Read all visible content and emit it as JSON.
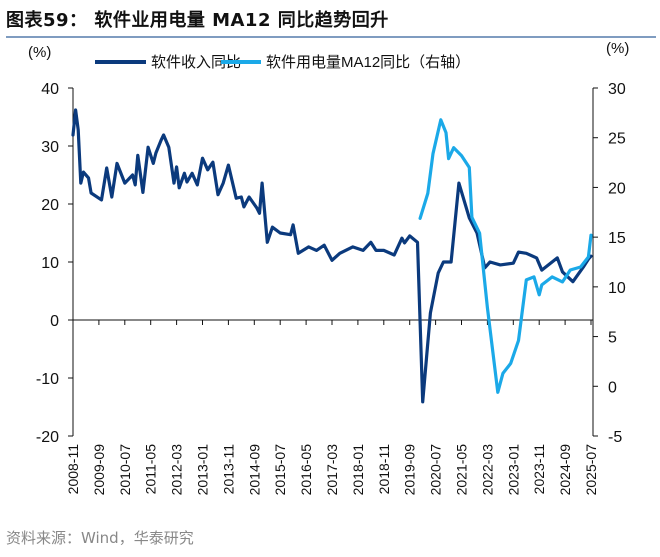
{
  "title": "图表59： 软件业用电量 MA12 同比趋势回升",
  "source": "资料来源：Wind，华泰研究",
  "chart_data": {
    "type": "line",
    "title": "软件业用电量 MA12 同比趋势回升",
    "left_axis": {
      "label": "(%)",
      "ylim": [
        -20,
        40
      ],
      "ticks": [
        -20,
        -10,
        0,
        10,
        20,
        30,
        40
      ]
    },
    "right_axis": {
      "label": "(%)",
      "ylim": [
        -5,
        30
      ],
      "ticks": [
        -5,
        0,
        5,
        10,
        15,
        20,
        25,
        30
      ]
    },
    "x_tick_labels": [
      "2008-11",
      "2009-09",
      "2010-07",
      "2011-05",
      "2012-03",
      "2013-01",
      "2013-11",
      "2014-09",
      "2015-07",
      "2016-05",
      "2017-03",
      "2018-01",
      "2018-11",
      "2019-09",
      "2020-07",
      "2021-05",
      "2022-03",
      "2023-01",
      "2023-11",
      "2024-09",
      "2025-07"
    ],
    "xlim": [
      "2008-11",
      "2025-07"
    ],
    "grid": false,
    "legend_position": "top",
    "series": [
      {
        "name": "软件收入同比",
        "axis": "left",
        "color": "#0b3a7d",
        "points": [
          [
            "2008-11",
            31.9
          ],
          [
            "2008-12",
            36.2
          ],
          [
            "2009-01",
            32.8
          ],
          [
            "2009-02",
            23.6
          ],
          [
            "2009-03",
            25.5
          ],
          [
            "2009-05",
            24.5
          ],
          [
            "2009-06",
            21.9
          ],
          [
            "2009-10",
            20.7
          ],
          [
            "2009-12",
            26.2
          ],
          [
            "2010-02",
            21.2
          ],
          [
            "2010-04",
            27
          ],
          [
            "2010-07",
            23.6
          ],
          [
            "2010-10",
            25
          ],
          [
            "2010-11",
            23.3
          ],
          [
            "2010-12",
            28.4
          ],
          [
            "2011-02",
            22
          ],
          [
            "2011-04",
            29.8
          ],
          [
            "2011-06",
            27
          ],
          [
            "2011-07",
            28.8
          ],
          [
            "2011-09",
            31
          ],
          [
            "2011-10",
            31.9
          ],
          [
            "2011-12",
            29.8
          ],
          [
            "2012-02",
            23.6
          ],
          [
            "2012-03",
            26.4
          ],
          [
            "2012-04",
            22.8
          ],
          [
            "2012-06",
            25.3
          ],
          [
            "2012-07",
            23.8
          ],
          [
            "2012-09",
            25.3
          ],
          [
            "2012-11",
            23.3
          ],
          [
            "2013-01",
            27.9
          ],
          [
            "2013-03",
            25.9
          ],
          [
            "2013-05",
            27.2
          ],
          [
            "2013-07",
            21.6
          ],
          [
            "2013-09",
            23.6
          ],
          [
            "2013-11",
            26.7
          ],
          [
            "2014-02",
            21
          ],
          [
            "2014-04",
            21.2
          ],
          [
            "2014-05",
            19.5
          ],
          [
            "2014-07",
            21.2
          ],
          [
            "2014-10",
            19.3
          ],
          [
            "2014-11",
            18.4
          ],
          [
            "2014-12",
            23.6
          ],
          [
            "2015-02",
            13.4
          ],
          [
            "2015-04",
            16
          ],
          [
            "2015-07",
            15
          ],
          [
            "2015-11",
            14.7
          ],
          [
            "2015-12",
            16.4
          ],
          [
            "2016-02",
            11.5
          ],
          [
            "2016-06",
            12.6
          ],
          [
            "2016-09",
            12
          ],
          [
            "2016-12",
            12.9
          ],
          [
            "2017-03",
            10.3
          ],
          [
            "2017-06",
            11.5
          ],
          [
            "2017-11",
            12.6
          ],
          [
            "2018-03",
            12
          ],
          [
            "2018-06",
            13.4
          ],
          [
            "2018-08",
            12
          ],
          [
            "2018-11",
            12
          ],
          [
            "2019-03",
            11.2
          ],
          [
            "2019-06",
            14.1
          ],
          [
            "2019-07",
            13.3
          ],
          [
            "2019-09",
            14.5
          ],
          [
            "2019-12",
            13.4
          ],
          [
            "2020-02",
            -14.1
          ],
          [
            "2020-05",
            1.2
          ],
          [
            "2020-08",
            8.1
          ],
          [
            "2020-10",
            10
          ],
          [
            "2021-01",
            10
          ],
          [
            "2021-04",
            23.6
          ],
          [
            "2021-08",
            17.6
          ],
          [
            "2021-11",
            15
          ],
          [
            "2022-02",
            9
          ],
          [
            "2022-04",
            10
          ],
          [
            "2022-08",
            9.5
          ],
          [
            "2023-01",
            9.8
          ],
          [
            "2023-03",
            11.7
          ],
          [
            "2023-06",
            11.5
          ],
          [
            "2023-10",
            10.7
          ],
          [
            "2023-12",
            8.6
          ],
          [
            "2024-06",
            10.7
          ],
          [
            "2024-08",
            8.3
          ],
          [
            "2024-12",
            6.6
          ],
          [
            "2025-04",
            9.1
          ],
          [
            "2025-06",
            10.5
          ],
          [
            "2025-07",
            11
          ]
        ]
      },
      {
        "name": "软件用电量MA12同比（右轴）",
        "axis": "right",
        "color": "#1ba9e8",
        "points": [
          [
            "2020-01",
            16.9
          ],
          [
            "2020-04",
            19.4
          ],
          [
            "2020-06",
            23.4
          ],
          [
            "2020-09",
            26.8
          ],
          [
            "2020-11",
            25.5
          ],
          [
            "2020-12",
            22.9
          ],
          [
            "2021-02",
            24
          ],
          [
            "2021-05",
            23.2
          ],
          [
            "2021-08",
            22
          ],
          [
            "2021-09",
            17
          ],
          [
            "2021-12",
            15.4
          ],
          [
            "2022-03",
            7.9
          ],
          [
            "2022-07",
            -0.6
          ],
          [
            "2022-09",
            1.3
          ],
          [
            "2022-12",
            2.3
          ],
          [
            "2023-03",
            4.6
          ],
          [
            "2023-06",
            10.7
          ],
          [
            "2023-09",
            11
          ],
          [
            "2023-11",
            9.2
          ],
          [
            "2023-12",
            10.2
          ],
          [
            "2024-04",
            11
          ],
          [
            "2024-08",
            10.5
          ],
          [
            "2024-11",
            11.7
          ],
          [
            "2025-03",
            12
          ],
          [
            "2025-06",
            13
          ],
          [
            "2025-07",
            15.2
          ]
        ]
      }
    ]
  }
}
